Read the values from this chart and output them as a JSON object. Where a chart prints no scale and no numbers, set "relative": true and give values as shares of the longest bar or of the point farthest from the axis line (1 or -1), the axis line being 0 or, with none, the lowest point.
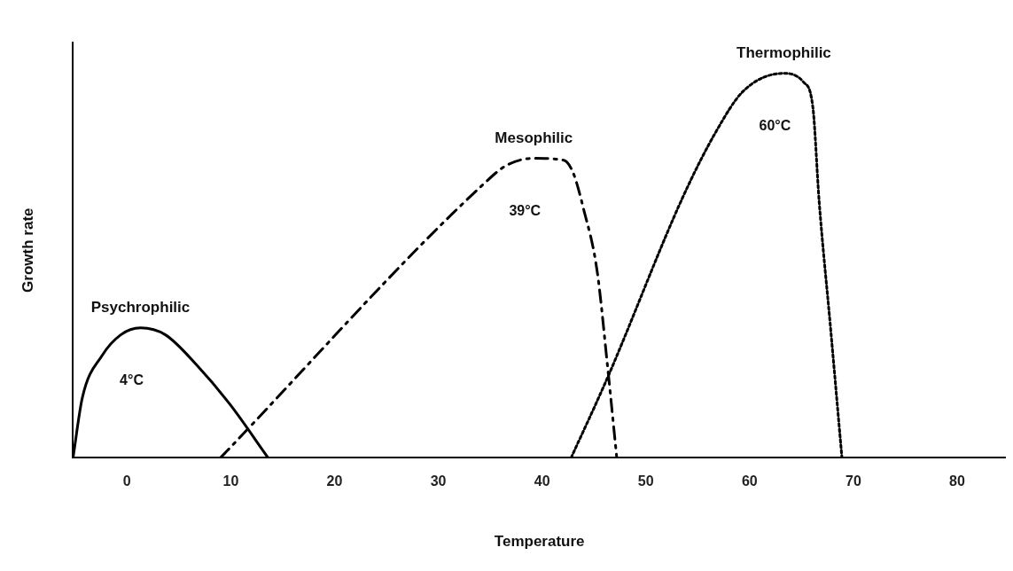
{
  "chart_data": {
    "type": "line",
    "xlabel": "Temperature",
    "ylabel": "Growth rate",
    "relative": true,
    "xlim": [
      -5.2,
      84.7
    ],
    "xticks": [
      0,
      10,
      20,
      30,
      40,
      50,
      60,
      70,
      80
    ],
    "grid": false,
    "legend": false,
    "marker": "none",
    "series": [
      {
        "name": "Psychrophilic",
        "color": "#000000",
        "line_style": "solid",
        "x": [
          -5.2,
          -4.3,
          -2.4,
          -0.6,
          1.3,
          3.7,
          6.8,
          9.9,
          13.6
        ],
        "values": [
          0,
          0.157,
          0.266,
          0.32,
          0.338,
          0.32,
          0.239,
          0.14,
          0
        ]
      },
      {
        "name": "Mesophilic",
        "color": "#000000",
        "line_style": "dashed",
        "x": [
          9.0,
          34.4,
          36.6,
          39.2,
          42.1,
          43.0,
          44.0,
          45.3,
          46.3,
          47.2
        ],
        "values": [
          0,
          0.713,
          0.761,
          0.779,
          0.774,
          0.741,
          0.647,
          0.487,
          0.241,
          0
        ]
      },
      {
        "name": "Thermophilic",
        "color": "#000000",
        "line_style": "dotted",
        "x": [
          42.8,
          46.3,
          53.6,
          56.8,
          59.4,
          63.3,
          65.2,
          66.1,
          66.7,
          67.8,
          68.9
        ],
        "values": [
          0,
          0.208,
          0.68,
          0.85,
          0.954,
          1,
          0.977,
          0.911,
          0.668,
          0.338,
          0
        ]
      }
    ],
    "annotations": [
      "4°C",
      "39°C",
      "60°C"
    ]
  }
}
